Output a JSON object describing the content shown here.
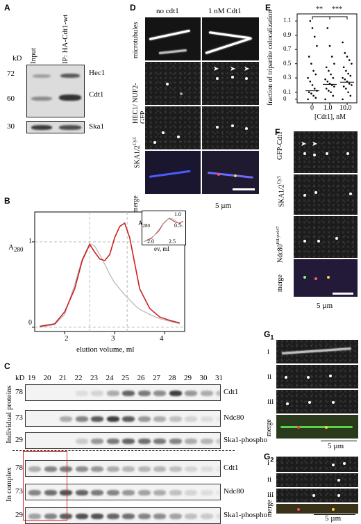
{
  "panel_letters": {
    "A": "A",
    "B": "B",
    "C": "C",
    "D": "D",
    "E": "E",
    "F": "F",
    "G1": "G",
    "G1_sub": "1",
    "G2": "G",
    "G2_sub": "2"
  },
  "panelA": {
    "kd": "kD",
    "lane_input": "Input",
    "lane_ip": "IP: HA-Cdt1-wt",
    "markers": [
      "72",
      "60",
      "30"
    ],
    "proteins": [
      "Hec1",
      "Cdt1",
      "Ska1"
    ]
  },
  "panelB": {
    "ylabel_main": "A",
    "ylabel_sub": "280",
    "xlabel": "elution volume, ml",
    "yticks": [
      "0",
      "1"
    ],
    "xticks": [
      "2",
      "3",
      "4"
    ],
    "inset": {
      "ylabel_main": "A",
      "ylabel_sub": "280",
      "xlabel": "ev, ml",
      "yticks": [
        "1.0",
        "0.5"
      ],
      "xticks": [
        "2.0",
        "2.5"
      ]
    }
  },
  "panelC": {
    "kd": "kD",
    "fractions": [
      "19",
      "20",
      "21",
      "22",
      "23",
      "24",
      "25",
      "26",
      "27",
      "28",
      "29",
      "30",
      "31"
    ],
    "group_top": "Individual proteins",
    "group_bottom": "In complex",
    "rows_top": [
      {
        "kd": "78",
        "name": "Cdt1"
      },
      {
        "kd": "73",
        "name": "Ndc80"
      },
      {
        "kd": "29",
        "name": "Ska1-phospho"
      }
    ],
    "rows_bottom": [
      {
        "kd": "78",
        "name": "Cdt1"
      },
      {
        "kd": "73",
        "name": "Ndc80"
      },
      {
        "kd": "29",
        "name": "Ska1-phospho"
      }
    ],
    "highlight_color": "#d62728"
  },
  "panelD": {
    "col_no": "no cdt1",
    "col_with": "1 nM Cdt1",
    "row_labels": [
      "microtubules",
      "HEC1/ NUF2-GFP",
      "SKA1/2",
      "merge"
    ],
    "cy3": "Cy3",
    "scale": "5 µm"
  },
  "panelE": {
    "ylabel": "fraction of tripartite colocalization",
    "xlabel": "[Cdt1], nM",
    "xticks": [
      "0",
      "1.0",
      "10.0"
    ],
    "yticks": [
      "0",
      "0.1",
      "0.3",
      "0.5",
      "0.7",
      "0.9",
      "1.1"
    ],
    "sig1": "**",
    "sig2": "***"
  },
  "panelF": {
    "row_labels": [
      "GFP-Cdt1",
      "SKA1/2",
      "Ndc80"
    ],
    "cy3": "Cy3",
    "ndc_sup": "HiLyte647",
    "merge": "merge",
    "scale": "5 µm"
  },
  "panelG1": {
    "rows": [
      "i",
      "ii",
      "iii",
      "merge"
    ],
    "scale": "5 µm"
  },
  "panelG2": {
    "rows": [
      "i",
      "ii",
      "iii",
      "merge"
    ],
    "scale": "5 µm"
  },
  "chart_data": [
    {
      "type": "line",
      "title": "",
      "xlabel": "elution volume, ml",
      "ylabel": "A280",
      "xlim": [
        1.4,
        4.4
      ],
      "ylim": [
        -0.05,
        1.35
      ],
      "series": [
        {
          "color": "#cc1f1f",
          "x": [
            1.5,
            1.8,
            2.0,
            2.2,
            2.35,
            2.5,
            2.6,
            2.7,
            2.8,
            2.9,
            3.0,
            3.1,
            3.2,
            3.3,
            3.4,
            3.5,
            3.7,
            3.9,
            4.1,
            4.3
          ],
          "values": [
            0.01,
            0.04,
            0.18,
            0.45,
            0.78,
            0.97,
            0.88,
            0.8,
            0.78,
            0.85,
            1.05,
            1.18,
            1.22,
            1.05,
            0.75,
            0.45,
            0.22,
            0.12,
            0.08,
            0.05
          ]
        },
        {
          "color": "#b5b5b5",
          "x": [
            1.5,
            1.8,
            2.0,
            2.2,
            2.35,
            2.5,
            2.6,
            2.7,
            2.8,
            2.9,
            3.0,
            3.1,
            3.2,
            3.3,
            3.4,
            3.5,
            3.7,
            3.9,
            4.1,
            4.3
          ],
          "values": [
            0.0,
            0.03,
            0.15,
            0.5,
            0.8,
            0.98,
            0.95,
            0.85,
            0.74,
            0.62,
            0.52,
            0.45,
            0.38,
            0.32,
            0.26,
            0.21,
            0.15,
            0.1,
            0.07,
            0.04
          ]
        }
      ]
    },
    {
      "type": "scatter",
      "title": "",
      "xlabel": "[Cdt1], nM",
      "ylabel": "fraction of tripartite colocalization",
      "categories": [
        "0",
        "1.0",
        "10.0"
      ],
      "ylim": [
        -0.05,
        1.2
      ],
      "medians": [
        0.12,
        0.21,
        0.24
      ],
      "series": [
        {
          "name": "",
          "values": [
            0.0,
            0.02,
            0.05,
            0.08,
            0.1,
            0.12,
            0.15,
            0.2,
            0.25,
            0.3,
            0.35,
            0.4,
            0.5,
            0.6,
            0.75,
            0.88,
            1.0,
            1.1
          ]
        },
        {
          "name": "",
          "values": [
            0.0,
            0.05,
            0.1,
            0.12,
            0.15,
            0.18,
            0.2,
            0.22,
            0.25,
            0.28,
            0.3,
            0.35,
            0.4,
            0.45,
            0.5,
            0.6,
            0.75,
            1.0
          ]
        },
        {
          "name": "",
          "values": [
            0.0,
            0.05,
            0.1,
            0.15,
            0.18,
            0.2,
            0.22,
            0.25,
            0.28,
            0.3,
            0.33,
            0.36,
            0.4,
            0.45,
            0.5,
            0.55,
            0.6,
            0.65,
            0.8
          ]
        }
      ]
    }
  ]
}
